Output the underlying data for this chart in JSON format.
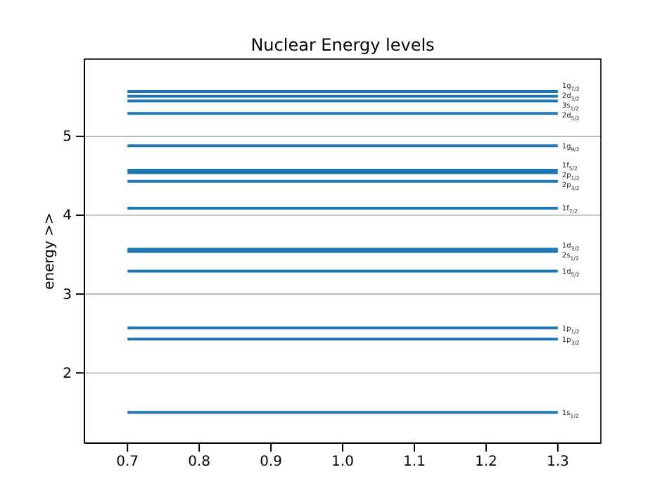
{
  "chart_data": {
    "type": "line",
    "title": "Nuclear Energy levels",
    "ylabel": "energy >>",
    "xlim": [
      0.64,
      1.36
    ],
    "xticks": [
      0.7,
      0.8,
      0.9,
      {
        "value": 1,
        "label": "1.0"
      },
      1.1,
      1.2,
      1.3
    ],
    "ylim": [
      1.11,
      5.98
    ],
    "yticks": [
      2,
      3,
      4,
      5
    ],
    "grid": "y",
    "legend": false,
    "x": [
      0.7,
      1.3
    ],
    "series": [
      {
        "name": "1s$_{1/2}$",
        "color": "#1f77b4",
        "values": [
          1.5,
          1.5
        ]
      },
      {
        "name": "1p$_{3/2}$",
        "color": "#1f77b4",
        "values": [
          2.43,
          2.43
        ]
      },
      {
        "name": "1p$_{1/2}$",
        "color": "#1f77b4",
        "values": [
          2.57,
          2.57
        ]
      },
      {
        "name": "1d$_{5/2}$",
        "color": "#1f77b4",
        "values": [
          3.29,
          3.29
        ]
      },
      {
        "name": "2s$_{1/2}$",
        "color": "#1f77b4",
        "values": [
          3.54,
          3.54
        ]
      },
      {
        "name": "1d$_{3/2}$",
        "color": "#1f77b4",
        "values": [
          3.57,
          3.57
        ]
      },
      {
        "name": "1f$_{7/2}$",
        "color": "#1f77b4",
        "values": [
          4.09,
          4.09
        ]
      },
      {
        "name": "2p$_{3/2}$",
        "color": "#1f77b4",
        "values": [
          4.43,
          4.43
        ]
      },
      {
        "name": "2p$_{1/2}$",
        "color": "#1f77b4",
        "values": [
          4.54,
          4.54
        ]
      },
      {
        "name": "1f$_{5/2}$",
        "color": "#1f77b4",
        "values": [
          4.57,
          4.57
        ]
      },
      {
        "name": "1g$_{9/2}$",
        "color": "#1f77b4",
        "values": [
          4.88,
          4.88
        ]
      },
      {
        "name": "2d$_{5/2}$",
        "color": "#1f77b4",
        "values": [
          5.29,
          5.29
        ]
      },
      {
        "name": "3s$_{1/2}$",
        "color": "#1f77b4",
        "values": [
          5.45,
          5.45
        ]
      },
      {
        "name": "2d$_{3/2}$",
        "color": "#1f77b4",
        "values": [
          5.51,
          5.51
        ]
      },
      {
        "name": "1g$_{7/2}$",
        "color": "#1f77b4",
        "values": [
          5.57,
          5.57
        ]
      }
    ]
  }
}
